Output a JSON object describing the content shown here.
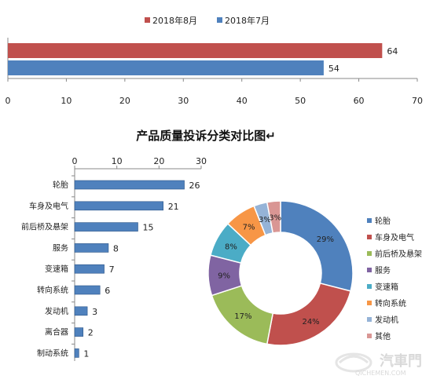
{
  "chart_data": [
    {
      "type": "bar",
      "orientation": "horizontal",
      "legend_position": "top",
      "series": [
        {
          "name": "2018年8月",
          "color": "#c0504d",
          "values": [
            64
          ]
        },
        {
          "name": "2018年7月",
          "color": "#4f81bd",
          "values": [
            54
          ]
        }
      ],
      "xlim": [
        0,
        70
      ],
      "xticks": [
        "0",
        "10",
        "20",
        "30",
        "40",
        "50",
        "60",
        "70"
      ]
    },
    {
      "type": "bar",
      "orientation": "horizontal",
      "title": "产品质量投诉分类对比图↵",
      "categories": [
        "轮胎",
        "车身及电气",
        "前后桥及悬架",
        "服务",
        "变速箱",
        "转向系统",
        "发动机",
        "离合器",
        "制动系统"
      ],
      "values": [
        26,
        21,
        15,
        8,
        7,
        6,
        3,
        2,
        1
      ],
      "color": "#4f81bd",
      "xlim": [
        0,
        30
      ],
      "xticks": [
        "0",
        "10",
        "20",
        "30"
      ],
      "xaxis_position": "top"
    },
    {
      "type": "pie",
      "donut": true,
      "legend_position": "right",
      "slices": [
        {
          "label": "轮胎",
          "value": 29,
          "display": "29%",
          "color": "#4f81bd"
        },
        {
          "label": "车身及电气",
          "value": 24,
          "display": "24%",
          "color": "#c0504d"
        },
        {
          "label": "前后桥及悬架",
          "value": 17,
          "display": "17%",
          "color": "#9bbb59"
        },
        {
          "label": "服务",
          "value": 9,
          "display": "9%",
          "color": "#8064a2"
        },
        {
          "label": "变速箱",
          "value": 8,
          "display": "8%",
          "color": "#4bacc6"
        },
        {
          "label": "转向系统",
          "value": 7,
          "display": "7%",
          "color": "#f79646"
        },
        {
          "label": "发动机",
          "value": 3,
          "display": "3%",
          "color": "#95b3d7"
        },
        {
          "label": "其他",
          "value": 3,
          "display": "3%",
          "color": "#d99694"
        }
      ]
    }
  ],
  "watermark": {
    "text": "汽車門",
    "sub": "QICHEMEN.COM"
  }
}
